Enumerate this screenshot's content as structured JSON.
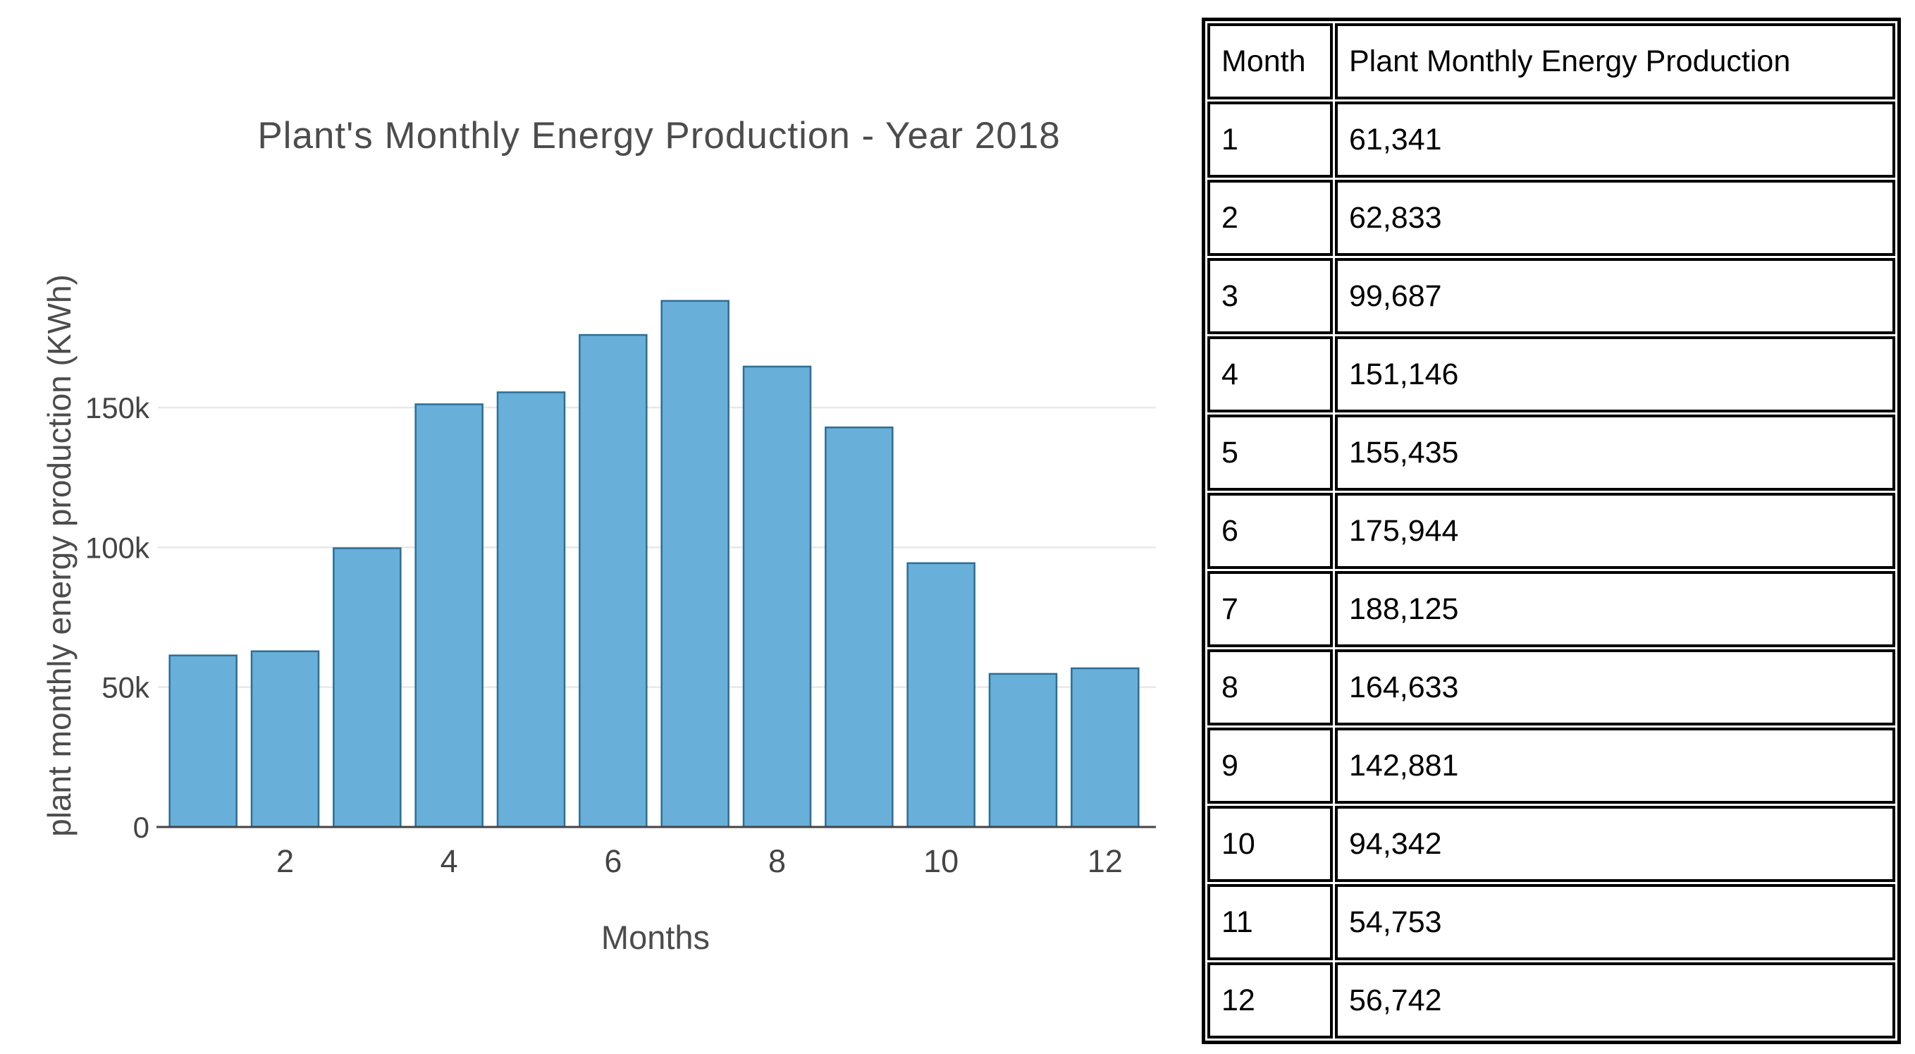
{
  "chart_data": {
    "type": "bar",
    "title": "Plant's Monthly Energy Production - Year 2018",
    "xlabel": "Months",
    "ylabel": "plant monthly energy production (KWh)",
    "x": [
      1,
      2,
      3,
      4,
      5,
      6,
      7,
      8,
      9,
      10,
      11,
      12
    ],
    "values": [
      61341,
      62833,
      99687,
      151146,
      155435,
      175944,
      188125,
      164633,
      142881,
      94342,
      54753,
      56742
    ],
    "x_ticks": [
      {
        "value": 2,
        "label": "2"
      },
      {
        "value": 4,
        "label": "4"
      },
      {
        "value": 6,
        "label": "6"
      },
      {
        "value": 8,
        "label": "8"
      },
      {
        "value": 10,
        "label": "10"
      },
      {
        "value": 12,
        "label": "12"
      }
    ],
    "y_ticks": [
      {
        "value": 0,
        "label": "0"
      },
      {
        "value": 50000,
        "label": "50k"
      },
      {
        "value": 100000,
        "label": "100k"
      },
      {
        "value": 150000,
        "label": "150k"
      }
    ],
    "ylim": [
      0,
      199400
    ],
    "xlim": [
      0.5,
      12.5
    ],
    "grid": "horizontal",
    "legend": "none",
    "colors": {
      "bar_fill": "#68AFD9",
      "bar_stroke": "#2E6E93",
      "gridline": "#E8E8E8",
      "axis_line": "#444444",
      "tick_label": "#444444",
      "title_text": "#4C4C4C"
    }
  },
  "table": {
    "headers": [
      "Month",
      "Plant Monthly Energy Production"
    ],
    "rows": [
      [
        "1",
        "61,341"
      ],
      [
        "2",
        "62,833"
      ],
      [
        "3",
        "99,687"
      ],
      [
        "4",
        "151,146"
      ],
      [
        "5",
        "155,435"
      ],
      [
        "6",
        "175,944"
      ],
      [
        "7",
        "188,125"
      ],
      [
        "8",
        "164,633"
      ],
      [
        "9",
        "142,881"
      ],
      [
        "10",
        "94,342"
      ],
      [
        "11",
        "54,753"
      ],
      [
        "12",
        "56,742"
      ]
    ]
  }
}
